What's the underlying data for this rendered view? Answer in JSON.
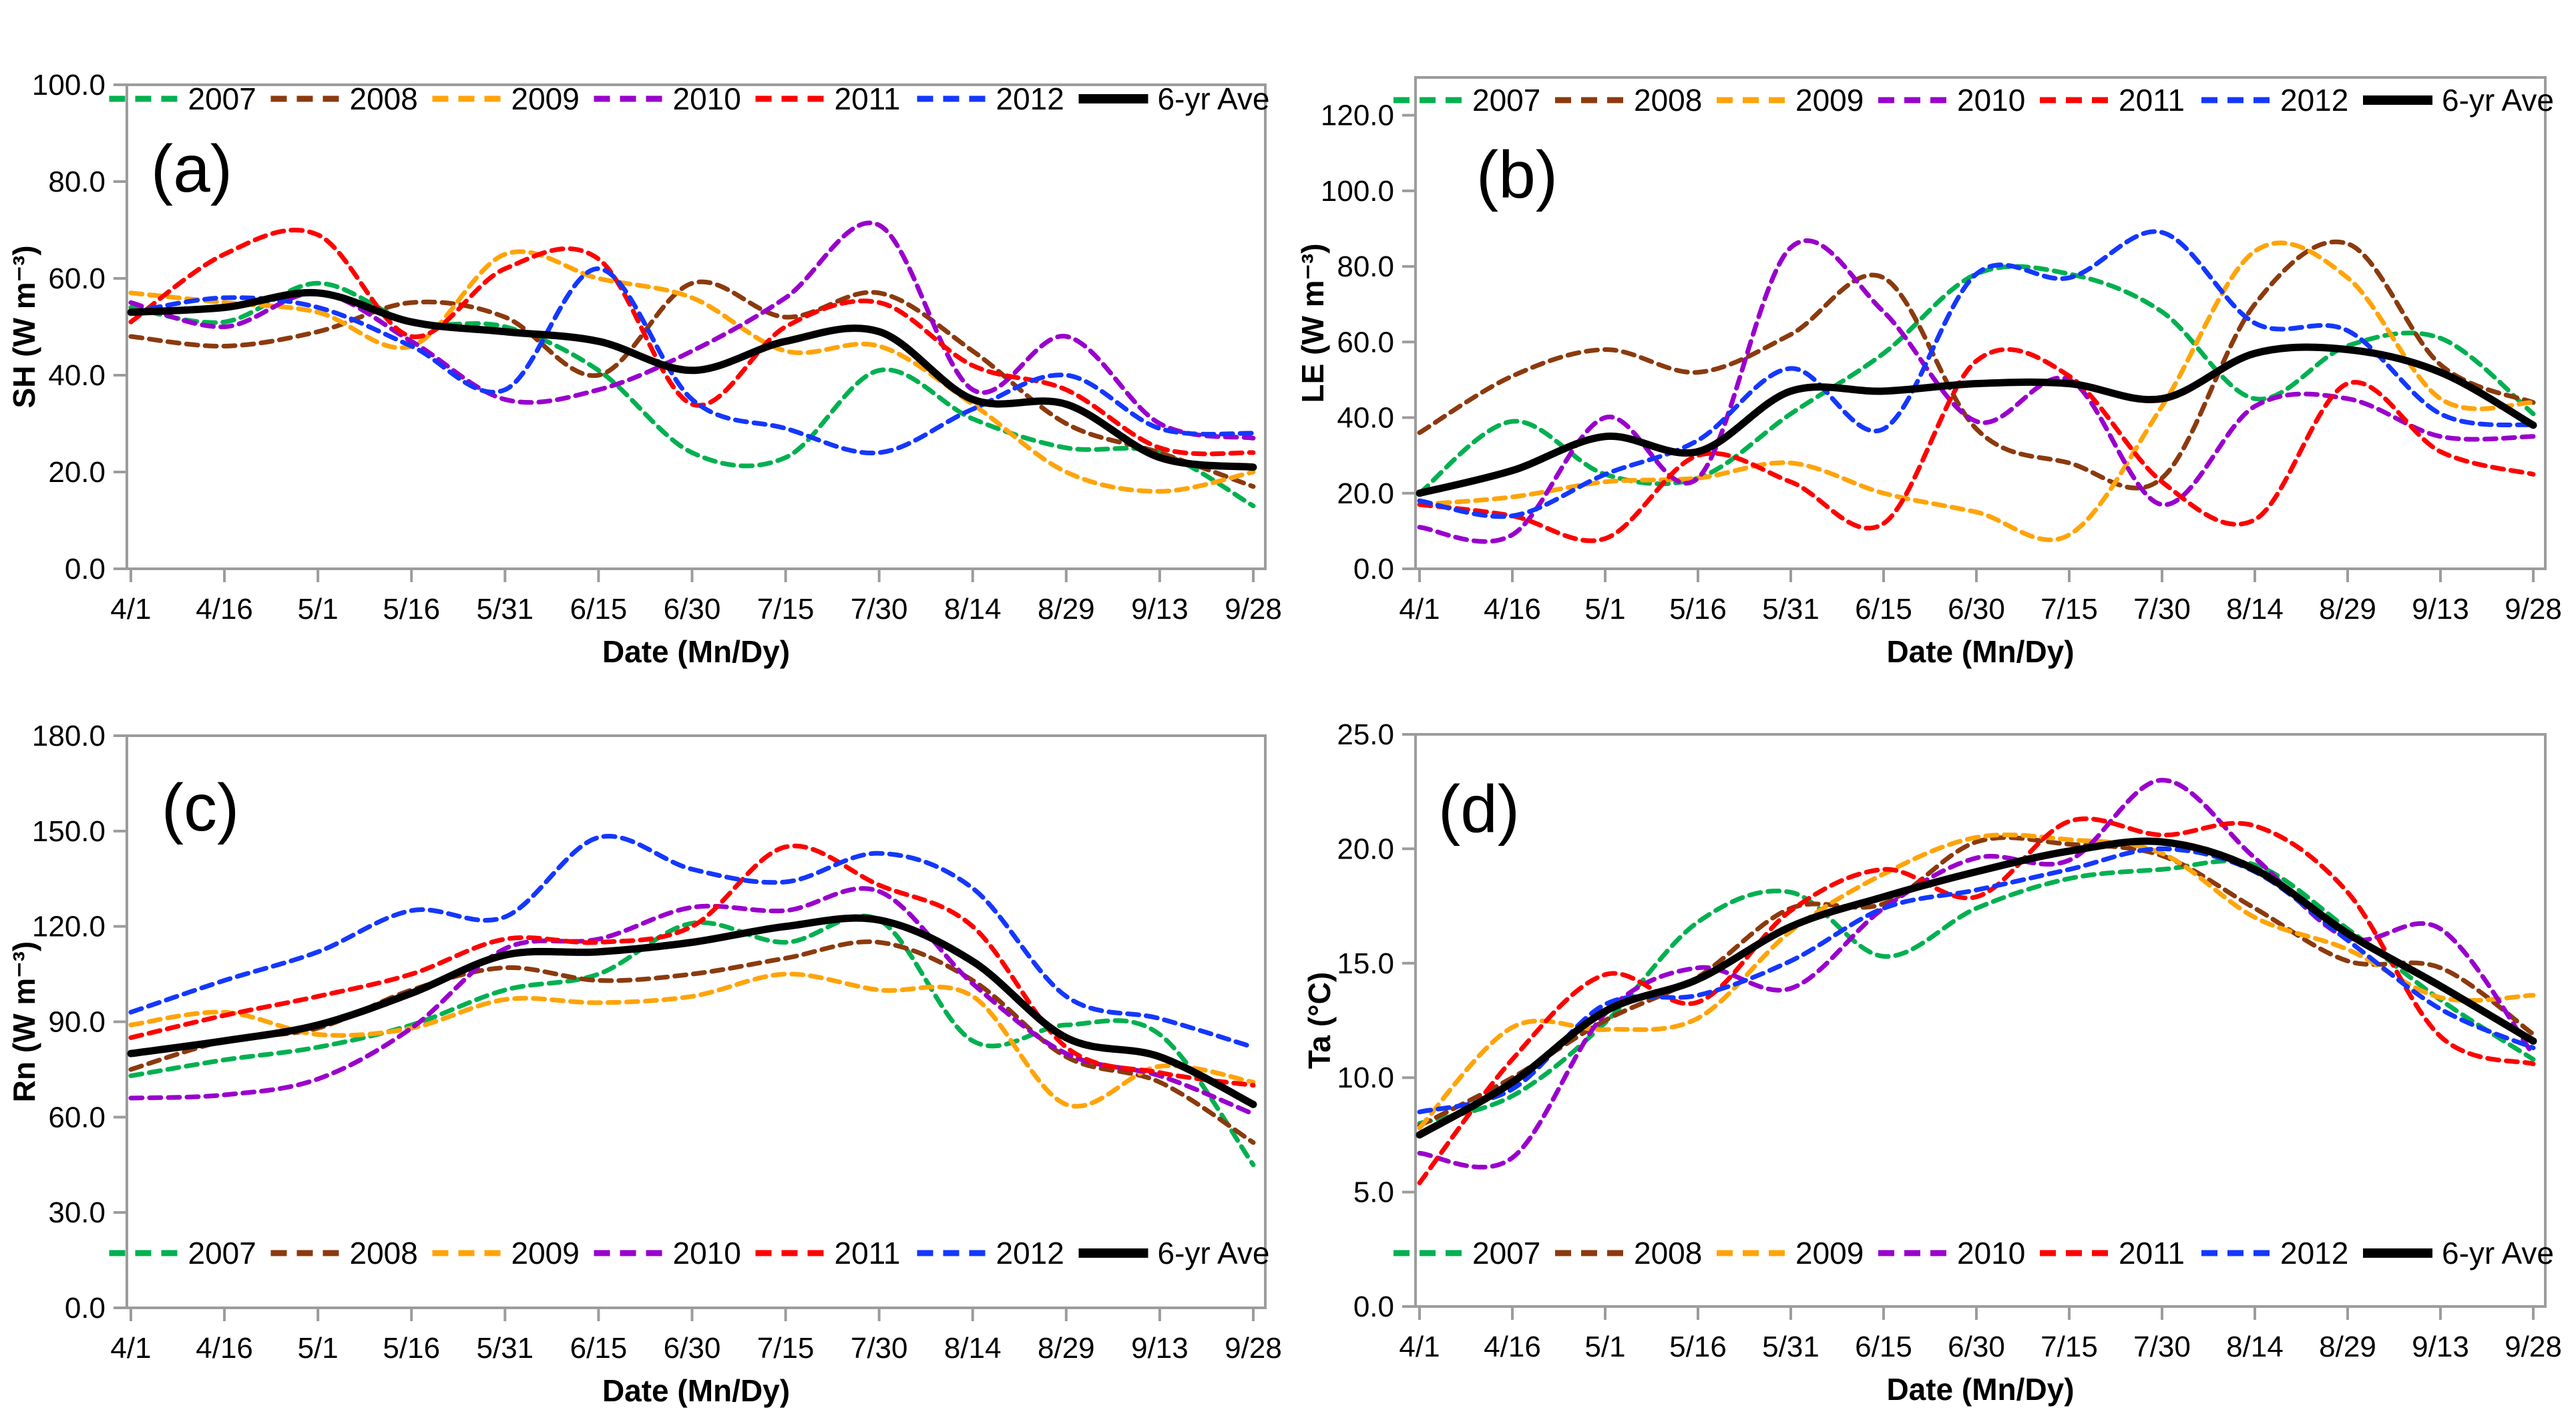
{
  "figure": {
    "x_axis_title": "Date (Mn/Dy)",
    "x_ticks": [
      "4/1",
      "4/16",
      "5/1",
      "5/16",
      "5/31",
      "6/15",
      "6/30",
      "7/15",
      "7/30",
      "8/14",
      "8/29",
      "9/13",
      "9/28"
    ],
    "legend": [
      "2007",
      "2008",
      "2009",
      "2010",
      "2011",
      "2012",
      "6-yr Ave"
    ],
    "colors": {
      "2007": "#00B050",
      "2008": "#8B3A0E",
      "2009": "#FFA408",
      "2010": "#9900CC",
      "2011": "#FF0000",
      "2012": "#1437FF",
      "6-yr Ave": "#000000",
      "axis_gray": "#9C9C9C",
      "text": "#000000"
    }
  },
  "chart_data": [
    {
      "type": "line",
      "panel_letter": "(a)",
      "ylabel": "SH (W m⁻³)",
      "xlabel": "Date (Mn/Dy)",
      "ylim": [
        0,
        100
      ],
      "y_ticks": [
        0,
        20,
        40,
        60,
        80,
        100
      ],
      "legend_position": "top",
      "grid": false,
      "categories": [
        "4/1",
        "4/16",
        "5/1",
        "5/16",
        "5/31",
        "6/15",
        "6/30",
        "7/15",
        "7/30",
        "8/14",
        "8/29",
        "9/13",
        "9/28"
      ],
      "series": [
        {
          "name": "2007",
          "color": "#00B050",
          "dashed": true,
          "values": [
            54,
            51,
            59,
            51,
            50,
            41,
            24,
            23,
            41,
            31,
            25,
            24,
            13
          ]
        },
        {
          "name": "2008",
          "color": "#8B3A0E",
          "dashed": true,
          "values": [
            48,
            46,
            49,
            55,
            52,
            40,
            59,
            52,
            57,
            45,
            30,
            24,
            17
          ]
        },
        {
          "name": "2009",
          "color": "#FFA408",
          "dashed": true,
          "values": [
            57,
            55,
            53,
            46,
            65,
            60,
            56,
            45,
            46,
            34,
            20,
            16,
            20
          ]
        },
        {
          "name": "2010",
          "color": "#9900CC",
          "dashed": true,
          "values": [
            55,
            50,
            57,
            47,
            35,
            37,
            45,
            56,
            71,
            37,
            48,
            30,
            27
          ]
        },
        {
          "name": "2011",
          "color": "#FF0000",
          "dashed": true,
          "values": [
            51,
            65,
            69,
            48,
            62,
            64,
            34,
            50,
            55,
            42,
            37,
            25,
            24
          ]
        },
        {
          "name": "2012",
          "color": "#1437FF",
          "dashed": true,
          "values": [
            53,
            56,
            54,
            46,
            37,
            62,
            35,
            29,
            24,
            33,
            40,
            29,
            28
          ]
        },
        {
          "name": "6-yr Ave",
          "color": "#000000",
          "dashed": false,
          "values": [
            53,
            54,
            57,
            51,
            49,
            47,
            41,
            47,
            49,
            35,
            34,
            23,
            21
          ]
        }
      ]
    },
    {
      "type": "line",
      "panel_letter": "(b)",
      "ylabel": "LE (W m⁻³)",
      "xlabel": "Date (Mn/Dy)",
      "ylim": [
        0,
        130
      ],
      "y_ticks": [
        0,
        20,
        40,
        60,
        80,
        100,
        120
      ],
      "legend_position": "top",
      "grid": false,
      "categories": [
        "4/1",
        "4/16",
        "5/1",
        "5/16",
        "5/31",
        "6/15",
        "6/30",
        "7/15",
        "7/30",
        "8/14",
        "8/29",
        "9/13",
        "9/28"
      ],
      "series": [
        {
          "name": "2007",
          "color": "#00B050",
          "dashed": true,
          "values": [
            20,
            39,
            25,
            24,
            41,
            57,
            78,
            78,
            68,
            45,
            59,
            61,
            41
          ]
        },
        {
          "name": "2008",
          "color": "#8B3A0E",
          "dashed": true,
          "values": [
            36,
            51,
            58,
            52,
            62,
            77,
            37,
            28,
            24,
            70,
            86,
            54,
            44
          ]
        },
        {
          "name": "2009",
          "color": "#FFA408",
          "dashed": true,
          "values": [
            17,
            19,
            23,
            24,
            28,
            20,
            15,
            9,
            43,
            84,
            77,
            45,
            44
          ]
        },
        {
          "name": "2010",
          "color": "#9900CC",
          "dashed": true,
          "values": [
            11,
            9,
            40,
            24,
            85,
            68,
            39,
            50,
            17,
            43,
            45,
            35,
            35
          ]
        },
        {
          "name": "2011",
          "color": "#FF0000",
          "dashed": true,
          "values": [
            17,
            14,
            8,
            30,
            23,
            12,
            55,
            51,
            23,
            13,
            49,
            31,
            25
          ]
        },
        {
          "name": "2012",
          "color": "#1437FF",
          "dashed": true,
          "values": [
            18,
            14,
            25,
            34,
            53,
            37,
            78,
            77,
            89,
            65,
            63,
            41,
            38
          ]
        },
        {
          "name": "6-yr Ave",
          "color": "#000000",
          "dashed": false,
          "values": [
            20,
            26,
            35,
            31,
            47,
            47,
            49,
            49,
            45,
            57,
            58,
            52,
            38
          ]
        }
      ]
    },
    {
      "type": "line",
      "panel_letter": "(c)",
      "ylabel": "Rn (W m⁻³)",
      "xlabel": "Date (Mn/Dy)",
      "ylim": [
        0,
        180
      ],
      "y_ticks": [
        0,
        30,
        60,
        90,
        120,
        150,
        180
      ],
      "legend_position": "bottom",
      "grid": false,
      "categories": [
        "4/1",
        "4/16",
        "5/1",
        "5/16",
        "5/31",
        "6/15",
        "6/30",
        "7/15",
        "7/30",
        "8/14",
        "8/29",
        "9/13",
        "9/28"
      ],
      "series": [
        {
          "name": "2007",
          "color": "#00B050",
          "dashed": true,
          "values": [
            73,
            78,
            82,
            89,
            100,
            105,
            121,
            115,
            122,
            84,
            89,
            86,
            45
          ]
        },
        {
          "name": "2008",
          "color": "#8B3A0E",
          "dashed": true,
          "values": [
            75,
            84,
            88,
            100,
            107,
            103,
            105,
            110,
            115,
            103,
            79,
            71,
            52
          ]
        },
        {
          "name": "2009",
          "color": "#FFA408",
          "dashed": true,
          "values": [
            89,
            93,
            86,
            88,
            97,
            96,
            98,
            105,
            100,
            98,
            64,
            76,
            71
          ]
        },
        {
          "name": "2010",
          "color": "#9900CC",
          "dashed": true,
          "values": [
            66,
            67,
            72,
            88,
            113,
            116,
            126,
            125,
            131,
            102,
            80,
            73,
            61
          ]
        },
        {
          "name": "2011",
          "color": "#FF0000",
          "dashed": true,
          "values": [
            85,
            92,
            98,
            105,
            116,
            115,
            120,
            145,
            133,
            120,
            82,
            74,
            70
          ]
        },
        {
          "name": "2012",
          "color": "#1437FF",
          "dashed": true,
          "values": [
            93,
            103,
            112,
            125,
            123,
            148,
            138,
            134,
            143,
            132,
            98,
            91,
            82
          ]
        },
        {
          "name": "6-yr Ave",
          "color": "#000000",
          "dashed": false,
          "values": [
            80,
            84,
            89,
            99,
            111,
            112,
            115,
            120,
            122,
            109,
            85,
            79,
            64
          ]
        }
      ]
    },
    {
      "type": "line",
      "panel_letter": "(d)",
      "ylabel": "Ta (°C)",
      "xlabel": "Date (Mn/Dy)",
      "ylim": [
        0,
        25
      ],
      "y_ticks": [
        0,
        5,
        10,
        15,
        20,
        25
      ],
      "legend_position": "bottom",
      "grid": false,
      "categories": [
        "4/1",
        "4/16",
        "5/1",
        "5/16",
        "5/31",
        "6/15",
        "6/30",
        "7/15",
        "7/30",
        "8/14",
        "8/29",
        "9/13",
        "9/28"
      ],
      "series": [
        {
          "name": "2007",
          "color": "#00B050",
          "dashed": true,
          "values": [
            8.0,
            9.2,
            12.4,
            16.8,
            18.1,
            15.3,
            17.4,
            18.7,
            19.1,
            19.3,
            16.5,
            13.4,
            10.8
          ]
        },
        {
          "name": "2008",
          "color": "#8B3A0E",
          "dashed": true,
          "values": [
            7.9,
            10.0,
            12.5,
            14.4,
            17.4,
            17.6,
            20.3,
            20.2,
            19.7,
            17.4,
            15.1,
            14.8,
            11.9
          ]
        },
        {
          "name": "2009",
          "color": "#FFA408",
          "dashed": true,
          "values": [
            7.8,
            12.2,
            12.1,
            12.6,
            16.4,
            18.9,
            20.5,
            20.4,
            19.8,
            17.0,
            15.6,
            13.5,
            13.6
          ]
        },
        {
          "name": "2010",
          "color": "#9900CC",
          "dashed": true,
          "values": [
            6.7,
            6.5,
            12.8,
            14.8,
            13.9,
            17.4,
            19.6,
            19.5,
            23.0,
            19.6,
            16.1,
            16.5,
            11.0
          ]
        },
        {
          "name": "2011",
          "color": "#FF0000",
          "dashed": true,
          "values": [
            5.4,
            10.8,
            14.5,
            13.3,
            17.3,
            19.1,
            17.9,
            21.2,
            20.6,
            21.0,
            18.1,
            11.8,
            10.6
          ]
        },
        {
          "name": "2012",
          "color": "#1437FF",
          "dashed": true,
          "values": [
            8.5,
            9.5,
            13.2,
            13.6,
            15.1,
            17.4,
            18.2,
            19.1,
            20.0,
            19.0,
            16.0,
            13.0,
            11.3
          ]
        },
        {
          "name": "6-yr Ave",
          "color": "#000000",
          "dashed": false,
          "values": [
            7.5,
            9.8,
            12.9,
            14.3,
            16.6,
            17.9,
            19.0,
            19.9,
            20.3,
            19.1,
            16.3,
            14.0,
            11.6
          ]
        }
      ]
    }
  ]
}
